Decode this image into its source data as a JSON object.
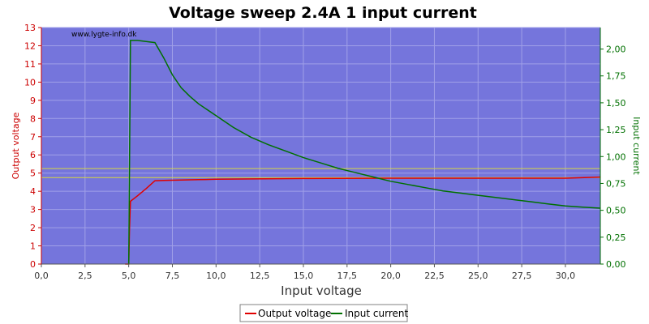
{
  "chart_data": {
    "type": "line",
    "title": "Voltage sweep 2.4A 1 input current",
    "watermark": "www.lygte-info.dk",
    "xlabel": "Input voltage",
    "ylabel_left": "Output voltage",
    "ylabel_right": "Input current",
    "xlim": [
      0,
      32
    ],
    "ylim_left": [
      0,
      13
    ],
    "ylim_right": [
      0,
      2.2
    ],
    "x_ticks": [
      0,
      2.5,
      5,
      7.5,
      10,
      12.5,
      15,
      17.5,
      20,
      22.5,
      25,
      27.5,
      30
    ],
    "x_tick_labels": [
      "0,0",
      "2,5",
      "5,0",
      "7,5",
      "10,0",
      "12,5",
      "15,0",
      "17,5",
      "20,0",
      "22,5",
      "25,0",
      "27,5",
      "30,0"
    ],
    "y_left_ticks": [
      0,
      1,
      2,
      3,
      4,
      5,
      6,
      7,
      8,
      9,
      10,
      11,
      12,
      13
    ],
    "y_left_tick_labels": [
      "0",
      "1",
      "2",
      "3",
      "4",
      "5",
      "6",
      "7",
      "8",
      "9",
      "10",
      "11",
      "12",
      "13"
    ],
    "y_right_ticks": [
      0,
      0.25,
      0.5,
      0.75,
      1.0,
      1.25,
      1.5,
      1.75,
      2.0
    ],
    "y_right_tick_labels": [
      "0,00",
      "0,25",
      "0,50",
      "0,75",
      "1,00",
      "1,25",
      "1,50",
      "1,75",
      "2,00"
    ],
    "grid": true,
    "legend_position": "bottom-center",
    "colors": {
      "plot_bg": "#7575dc",
      "grid": "#a0a0e8",
      "output_voltage": "#e00000",
      "input_current": "#007000",
      "reference_line": "#d8d840",
      "left_axis": "#cc0000",
      "right_axis": "#007000"
    },
    "reference_lines_left": [
      4.75,
      5.25
    ],
    "series": [
      {
        "name": "Output voltage",
        "axis": "left",
        "x": [
          4.8,
          5.0,
          5.05,
          5.1,
          5.5,
          6.0,
          6.5,
          7.0,
          8.0,
          9.0,
          10.0,
          12.0,
          15.0,
          20.0,
          25.0,
          30.0,
          32.0
        ],
        "y": [
          0.0,
          0.0,
          2.0,
          3.45,
          3.75,
          4.15,
          4.58,
          4.6,
          4.62,
          4.64,
          4.66,
          4.68,
          4.7,
          4.72,
          4.72,
          4.72,
          4.78
        ]
      },
      {
        "name": "Input current",
        "axis": "right",
        "x": [
          5.0,
          5.1,
          5.5,
          6.0,
          6.5,
          7.0,
          7.5,
          8.0,
          8.5,
          9.0,
          10.0,
          11.0,
          12.0,
          13.0,
          14.0,
          15.0,
          16.0,
          17.0,
          18.0,
          19.0,
          20.0,
          21.0,
          22.0,
          23.0,
          24.0,
          25.0,
          26.0,
          27.0,
          28.0,
          29.0,
          30.0,
          31.0,
          32.0
        ],
        "y": [
          0.0,
          2.08,
          2.08,
          2.07,
          2.06,
          1.92,
          1.76,
          1.64,
          1.56,
          1.49,
          1.38,
          1.27,
          1.18,
          1.11,
          1.05,
          0.99,
          0.94,
          0.89,
          0.85,
          0.81,
          0.77,
          0.74,
          0.71,
          0.68,
          0.66,
          0.64,
          0.62,
          0.6,
          0.58,
          0.56,
          0.54,
          0.53,
          0.52
        ]
      }
    ]
  }
}
